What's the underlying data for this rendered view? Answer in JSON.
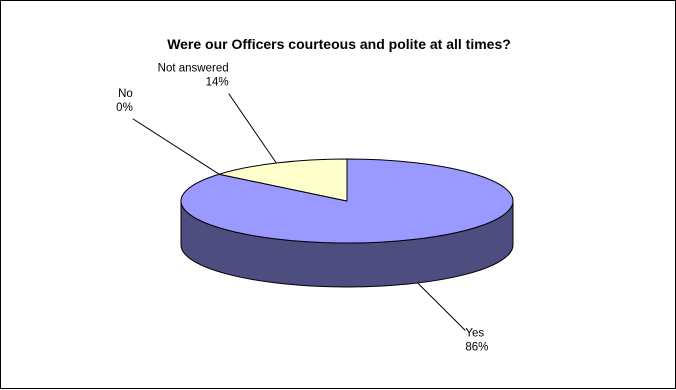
{
  "chart_data": {
    "type": "pie",
    "title": "Were our Officers courteous and polite at all times?",
    "three_d": true,
    "slices": [
      {
        "label": "Yes",
        "percent_text": "86%",
        "value": 86,
        "color": "#9999ff",
        "side_color": "#4d4d80"
      },
      {
        "label": "No",
        "percent_text": "0%",
        "value": 0,
        "color": "#993366",
        "side_color": "#4d1a33"
      },
      {
        "label": "Not answered",
        "percent_text": "14%",
        "value": 14,
        "color": "#ffffcc",
        "side_color": "#808066"
      }
    ]
  }
}
